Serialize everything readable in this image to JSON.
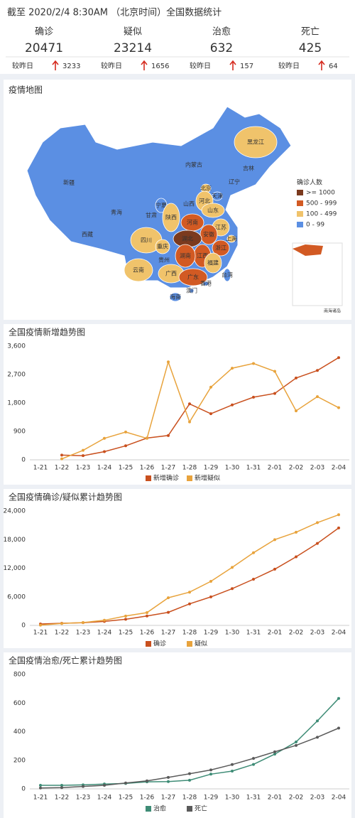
{
  "header": {
    "title": "截至 2020/2/4 8:30AM （北京时间）全国数据统计",
    "stats": [
      {
        "label": "确诊",
        "value": 20471,
        "color": "#c9501e",
        "change_label": "较昨日",
        "change": 3233
      },
      {
        "label": "疑似",
        "value": 23214,
        "color": "#d99a32",
        "change_label": "较昨日",
        "change": 1656
      },
      {
        "label": "治愈",
        "value": 632,
        "color": "#3e8c76",
        "change_label": "较昨日",
        "change": 157
      },
      {
        "label": "死亡",
        "value": 425,
        "color": "#555555",
        "change_label": "较昨日",
        "change": 64
      }
    ]
  },
  "map": {
    "title": "疫情地图",
    "legend_title": "确诊人数",
    "legend": [
      {
        "label": ">= 1000",
        "color": "#7b3a1e"
      },
      {
        "label": "500 - 999",
        "color": "#d25a23"
      },
      {
        "label": "100 - 499",
        "color": "#f0c36b"
      },
      {
        "label": "0 - 99",
        "color": "#5b8fe3"
      }
    ],
    "provinces": [
      {
        "name": "黑龙江",
        "level": 2
      },
      {
        "name": "吉林",
        "level": 3
      },
      {
        "name": "辽宁",
        "level": 3
      },
      {
        "name": "内蒙古",
        "level": 3
      },
      {
        "name": "北京",
        "level": 2
      },
      {
        "name": "天津",
        "level": 3
      },
      {
        "name": "河北",
        "level": 2
      },
      {
        "name": "山西",
        "level": 3
      },
      {
        "name": "山东",
        "level": 2
      },
      {
        "name": "宁夏",
        "level": 3
      },
      {
        "name": "甘肃",
        "level": 3
      },
      {
        "name": "陕西",
        "level": 2
      },
      {
        "name": "青海",
        "level": 3
      },
      {
        "name": "新疆",
        "level": 3
      },
      {
        "name": "西藏",
        "level": 3
      },
      {
        "name": "河南",
        "level": 1
      },
      {
        "name": "江苏",
        "level": 2
      },
      {
        "name": "安徽",
        "level": 1
      },
      {
        "name": "上海",
        "level": 2
      },
      {
        "name": "湖北",
        "level": 0
      },
      {
        "name": "四川",
        "level": 2
      },
      {
        "name": "重庆",
        "level": 2
      },
      {
        "name": "浙江",
        "level": 1
      },
      {
        "name": "江西",
        "level": 1
      },
      {
        "name": "湖南",
        "level": 1
      },
      {
        "name": "福建",
        "level": 2
      },
      {
        "name": "贵州",
        "level": 3
      },
      {
        "name": "云南",
        "level": 2
      },
      {
        "name": "广西",
        "level": 2
      },
      {
        "name": "广东",
        "level": 1
      },
      {
        "name": "台湾",
        "level": 3
      },
      {
        "name": "香港",
        "level": 3
      },
      {
        "name": "澳门",
        "level": 3
      },
      {
        "name": "海南",
        "level": 3
      }
    ],
    "note": "南海诸岛"
  },
  "chart_data": [
    {
      "type": "line",
      "title": "全国疫情新增趋势图",
      "categories": [
        "1-21",
        "1-22",
        "1-23",
        "1-24",
        "1-25",
        "1-26",
        "1-27",
        "1-28",
        "1-29",
        "1-30",
        "1-31",
        "2-01",
        "2-02",
        "2-03",
        "2-04"
      ],
      "ylim": [
        0,
        3600
      ],
      "yticks": [
        0,
        900,
        {
          "value": 1800,
          "label": "1,800"
        },
        {
          "value": 2700,
          "label": "2,700"
        },
        {
          "value": 3600,
          "label": "3,600"
        }
      ],
      "grid": false,
      "series": [
        {
          "name": "新增确诊",
          "color": "#c9501e",
          "values": [
            null,
            149,
            131,
            259,
            444,
            688,
            769,
            1771,
            1459,
            1737,
            1982,
            2102,
            2590,
            2829,
            3235
          ]
        },
        {
          "name": "新增疑似",
          "color": "#e8a33c",
          "values": [
            null,
            30,
            300,
            680,
            880,
            680,
            3100,
            1200,
            2300,
            2900,
            3050,
            2800,
            1550,
            2000,
            1650
          ]
        }
      ]
    },
    {
      "type": "line",
      "title": "全国疫情确诊/疑似累计趋势图",
      "categories": [
        "1-21",
        "1-22",
        "1-23",
        "1-24",
        "1-25",
        "1-26",
        "1-27",
        "1-28",
        "1-29",
        "1-30",
        "1-31",
        "2-01",
        "2-02",
        "2-03",
        "2-04"
      ],
      "ylim": [
        0,
        24000
      ],
      "yticks": [
        0,
        {
          "value": 6000,
          "label": "6,000"
        },
        {
          "value": 12000,
          "label": "12,000"
        },
        {
          "value": 18000,
          "label": "18,000"
        },
        {
          "value": 24000,
          "label": "24,000"
        }
      ],
      "grid": false,
      "series": [
        {
          "name": "确诊",
          "color": "#c9501e",
          "values": [
            291,
            440,
            571,
            830,
            1287,
            1975,
            2744,
            4515,
            5974,
            7711,
            9692,
            11791,
            14380,
            17205,
            20438
          ]
        },
        {
          "name": "疑似",
          "color": "#e8a33c",
          "values": [
            54,
            400,
            600,
            1072,
            1965,
            2684,
            5794,
            6973,
            9239,
            12167,
            15238,
            17988,
            19544,
            21558,
            23214
          ]
        }
      ]
    },
    {
      "type": "line",
      "title": "全国疫情治愈/死亡累计趋势图",
      "categories": [
        "1-21",
        "1-22",
        "1-23",
        "1-24",
        "1-25",
        "1-26",
        "1-27",
        "1-28",
        "1-29",
        "1-30",
        "1-31",
        "2-01",
        "2-02",
        "2-03",
        "2-04"
      ],
      "ylim": [
        0,
        800
      ],
      "yticks": [
        0,
        200,
        400,
        600,
        800
      ],
      "grid": false,
      "series": [
        {
          "name": "治愈",
          "color": "#3e8c76",
          "values": [
            25,
            25,
            28,
            34,
            38,
            49,
            51,
            60,
            103,
            124,
            171,
            243,
            328,
            475,
            632
          ]
        },
        {
          "name": "死亡",
          "color": "#5a5a5a",
          "values": [
            6,
            9,
            17,
            25,
            41,
            56,
            80,
            106,
            132,
            170,
            213,
            259,
            304,
            361,
            425
          ]
        }
      ]
    }
  ]
}
